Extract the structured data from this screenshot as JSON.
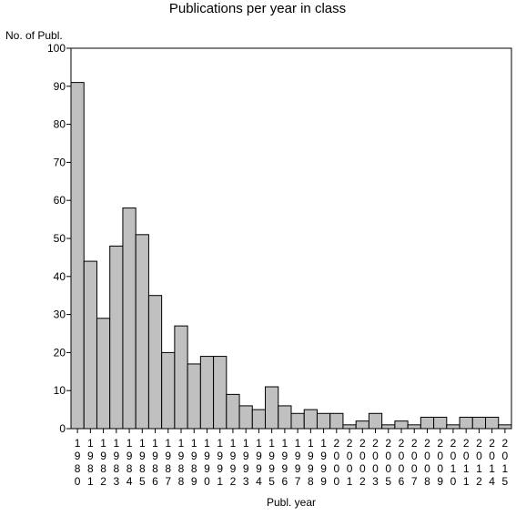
{
  "chart_data": {
    "type": "bar",
    "title": "Publications per year in class",
    "ylabel": "No. of Publ.",
    "xlabel": "Publ. year",
    "ylim": [
      0,
      100
    ],
    "yticks": [
      0,
      10,
      20,
      30,
      40,
      50,
      60,
      70,
      80,
      90,
      100
    ],
    "categories": [
      "1980",
      "1981",
      "1982",
      "1983",
      "1984",
      "1985",
      "1986",
      "1987",
      "1988",
      "1989",
      "1990",
      "1991",
      "1992",
      "1993",
      "1994",
      "1995",
      "1996",
      "1997",
      "1998",
      "1999",
      "2000",
      "2001",
      "2002",
      "2003",
      "2005",
      "2006",
      "2007",
      "2008",
      "2009",
      "2010",
      "2011",
      "2012",
      "2014",
      "2015"
    ],
    "values": [
      91,
      44,
      29,
      48,
      58,
      51,
      35,
      20,
      27,
      17,
      19,
      19,
      9,
      6,
      5,
      11,
      6,
      4,
      5,
      4,
      4,
      1,
      2,
      4,
      1,
      2,
      1,
      3,
      3,
      1,
      3,
      3,
      3,
      1
    ],
    "bar_color": "#c0c0c0",
    "grid": false
  }
}
